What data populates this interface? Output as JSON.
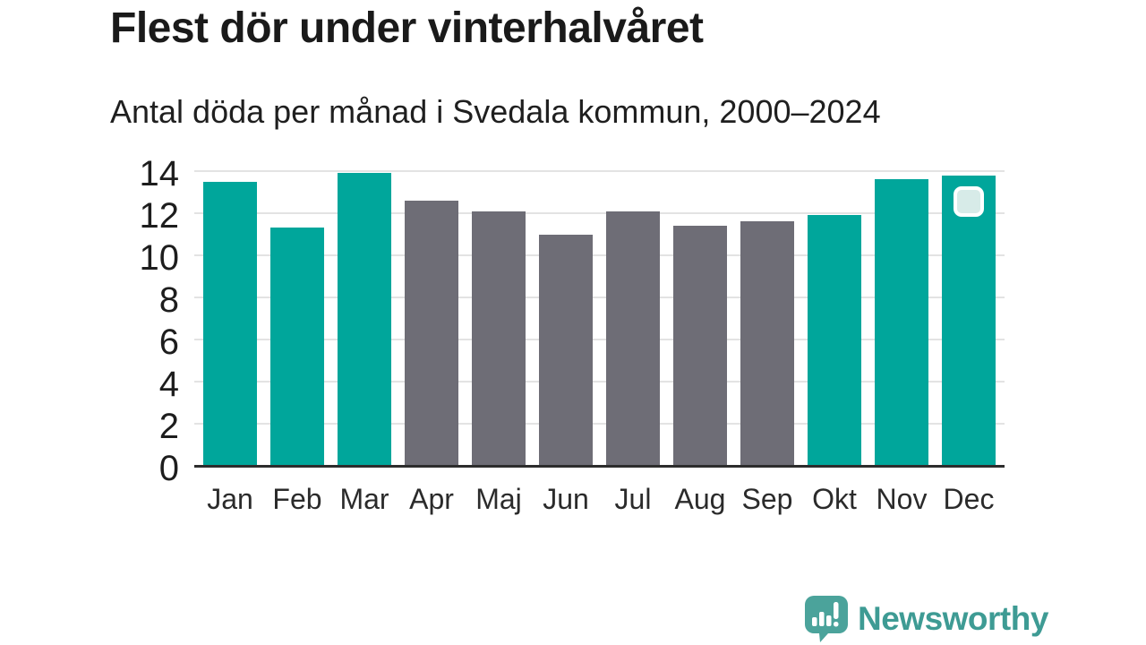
{
  "header": {
    "title": "Flest dör under vinterhalvåret",
    "subtitle": "Antal döda per månad i Svedala kommun, 2000–2024"
  },
  "chart_data": {
    "type": "bar",
    "title": "Flest dör under vinterhalvåret",
    "subtitle": "Antal döda per månad i Svedala kommun, 2000–2024",
    "categories": [
      "Jan",
      "Feb",
      "Mar",
      "Apr",
      "Maj",
      "Jun",
      "Jul",
      "Aug",
      "Sep",
      "Okt",
      "Nov",
      "Dec"
    ],
    "values": [
      13.5,
      11.3,
      13.9,
      12.6,
      12.1,
      11.0,
      12.1,
      11.4,
      11.6,
      11.9,
      13.6,
      13.8
    ],
    "bar_colors": [
      "#00A69B",
      "#00A69B",
      "#00A69B",
      "#6E6D76",
      "#6E6D76",
      "#6E6D76",
      "#6E6D76",
      "#6E6D76",
      "#6E6D76",
      "#00A69B",
      "#00A69B",
      "#00A69B"
    ],
    "winter_color": "#00A69B",
    "summer_color": "#6E6D76",
    "xlabel": "",
    "ylabel": "",
    "ylim": [
      0,
      14
    ],
    "yticks": [
      0,
      2,
      4,
      6,
      8,
      10,
      12,
      14
    ],
    "grid": true,
    "legend_position": "none",
    "highlight": {
      "category": "Dec",
      "marker": "rounded-square-handle",
      "fill": "#D7EBE8",
      "border": "#FFFFFF"
    }
  },
  "footer": {
    "brand_name": "Newsworthy",
    "brand_color": "#3E9B94",
    "logo_color": "#4BA39B",
    "logo_icon": "speech-bubble-barchart-exclamation"
  }
}
